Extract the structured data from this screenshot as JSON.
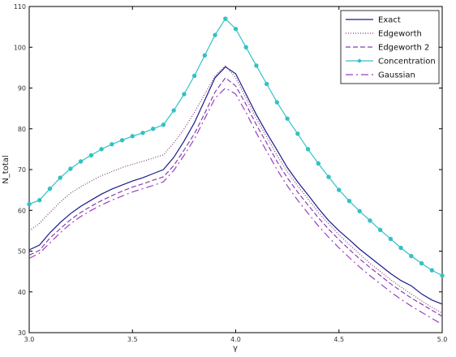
{
  "chart_data": {
    "type": "line",
    "title": "",
    "xlabel": "γ",
    "ylabel": "N_total",
    "xlim": [
      3.0,
      5.0
    ],
    "ylim": [
      30,
      110
    ],
    "xticks": [
      3.0,
      3.5,
      4.0,
      4.5,
      5.0
    ],
    "xtick_labels": [
      "3.0",
      "3.5",
      "4.0",
      "4.5",
      "5.0"
    ],
    "yticks": [
      30,
      40,
      50,
      60,
      70,
      80,
      90,
      100,
      110
    ],
    "ytick_labels": [
      "30",
      "40",
      "50",
      "60",
      "70",
      "80",
      "90",
      "100",
      "110"
    ],
    "grid": false,
    "legend_position": "top-right",
    "x": [
      3.0,
      3.05,
      3.1,
      3.15,
      3.2,
      3.25,
      3.3,
      3.35,
      3.4,
      3.45,
      3.5,
      3.55,
      3.6,
      3.65,
      3.7,
      3.75,
      3.8,
      3.85,
      3.9,
      3.95,
      4.0,
      4.05,
      4.1,
      4.15,
      4.2,
      4.25,
      4.3,
      4.35,
      4.4,
      4.45,
      4.5,
      4.55,
      4.6,
      4.65,
      4.7,
      4.75,
      4.8,
      4.85,
      4.9,
      4.95,
      5.0
    ],
    "series": [
      {
        "name": "Exact",
        "color": "#1a1a8c",
        "dash": "solid",
        "marker": "none",
        "values": [
          50.3,
          51.5,
          54.5,
          57.0,
          59.2,
          61.0,
          62.5,
          64.0,
          65.2,
          66.2,
          67.2,
          68.0,
          69.0,
          70.0,
          73.0,
          77.0,
          81.5,
          87.0,
          92.5,
          95.2,
          93.5,
          88.5,
          83.5,
          79.0,
          74.8,
          70.5,
          67.0,
          63.8,
          60.5,
          57.5,
          55.0,
          52.8,
          50.5,
          48.5,
          46.5,
          44.5,
          42.8,
          41.5,
          39.5,
          38.0,
          37.0
        ]
      },
      {
        "name": "Edgeworth",
        "color": "#7a3f7a",
        "dash": "1 2",
        "marker": "none",
        "values": [
          55.0,
          56.8,
          59.5,
          62.0,
          64.2,
          65.8,
          67.2,
          68.5,
          69.5,
          70.5,
          71.3,
          72.0,
          72.8,
          73.6,
          76.5,
          80.0,
          84.0,
          88.5,
          93.0,
          95.5,
          92.5,
          87.5,
          82.5,
          78.0,
          73.5,
          69.5,
          66.0,
          62.8,
          59.5,
          56.7,
          54.0,
          51.6,
          49.3,
          47.0,
          45.0,
          43.0,
          41.2,
          39.5,
          37.8,
          36.2,
          34.8
        ]
      },
      {
        "name": "Edgeworth 2",
        "color": "#8a3fb0",
        "dash": "6 3",
        "marker": "none",
        "values": [
          49.0,
          50.2,
          53.2,
          55.5,
          57.7,
          59.5,
          61.0,
          62.4,
          63.6,
          64.7,
          65.7,
          66.5,
          67.4,
          68.2,
          71.0,
          74.8,
          78.8,
          83.8,
          89.0,
          92.5,
          90.5,
          86.0,
          81.0,
          76.5,
          72.0,
          68.0,
          64.5,
          61.3,
          58.2,
          55.4,
          52.8,
          50.4,
          48.1,
          46.0,
          44.0,
          42.0,
          40.2,
          38.5,
          37.0,
          35.5,
          34.0
        ]
      },
      {
        "name": "Concentration",
        "color": "#33c1c4",
        "dash": "solid",
        "marker": "circle",
        "values": [
          61.5,
          62.5,
          65.3,
          68.0,
          70.2,
          72.0,
          73.5,
          75.0,
          76.2,
          77.2,
          78.2,
          79.0,
          80.0,
          81.0,
          84.5,
          88.5,
          93.0,
          98.0,
          103.0,
          107.0,
          104.5,
          100.0,
          95.5,
          91.0,
          86.5,
          82.5,
          78.8,
          75.0,
          71.5,
          68.2,
          65.0,
          62.3,
          59.8,
          57.5,
          55.2,
          53.0,
          50.8,
          48.8,
          47.0,
          45.3,
          44.0
        ]
      },
      {
        "name": "Gaussian",
        "color": "#9a3fbf",
        "dash": "9 4 2 4",
        "marker": "none",
        "values": [
          48.2,
          49.5,
          52.0,
          54.5,
          56.7,
          58.5,
          60.0,
          61.3,
          62.5,
          63.5,
          64.5,
          65.3,
          66.1,
          67.0,
          69.8,
          73.5,
          77.5,
          82.5,
          87.5,
          90.0,
          88.5,
          84.0,
          79.0,
          74.5,
          70.0,
          66.0,
          62.5,
          59.3,
          56.2,
          53.4,
          50.8,
          48.4,
          46.1,
          44.0,
          42.0,
          40.0,
          38.2,
          36.5,
          35.0,
          33.5,
          32.0
        ]
      }
    ]
  }
}
